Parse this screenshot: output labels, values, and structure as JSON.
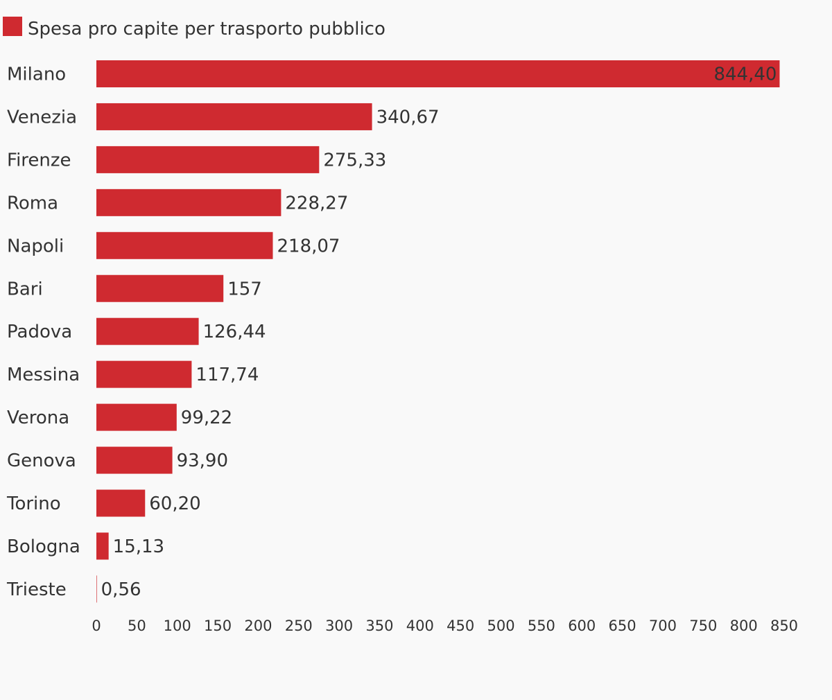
{
  "chart_data": {
    "type": "bar",
    "orientation": "horizontal",
    "legend_position": "top-left",
    "grid": false,
    "series": [
      {
        "name": "Spesa pro capite per trasporto pubblico",
        "color": "#cf2a30",
        "values": [
          844.4,
          340.67,
          275.33,
          228.27,
          218.07,
          157,
          126.44,
          117.74,
          99.22,
          93.9,
          60.2,
          15.13,
          0.56
        ],
        "value_labels": [
          "844,40",
          "340,67",
          "275,33",
          "228,27",
          "218,07",
          "157",
          "126,44",
          "117,74",
          "99,22",
          "93,90",
          "60,20",
          "15,13",
          "0,56"
        ]
      }
    ],
    "categories": [
      "Milano",
      "Venezia",
      "Firenze",
      "Roma",
      "Napoli",
      "Bari",
      "Padova",
      "Messina",
      "Verona",
      "Genova",
      "Torino",
      "Bologna",
      "Trieste"
    ],
    "xlim": [
      0,
      850
    ],
    "x_ticks": [
      "0",
      "50",
      "100",
      "150",
      "200",
      "250",
      "300",
      "350",
      "400",
      "450",
      "500",
      "550",
      "600",
      "650",
      "700",
      "750",
      "800",
      "850"
    ]
  }
}
